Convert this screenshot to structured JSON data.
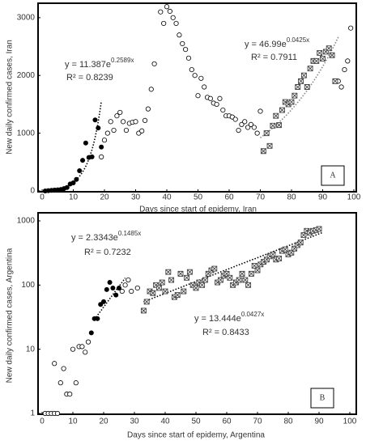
{
  "chart_data": [
    {
      "type": "scatter",
      "panel_label": "A",
      "xlabel": "Days since start of epidemy, Iran",
      "ylabel": "New daily confirmed cases, Iran",
      "xlim": [
        0,
        100
      ],
      "ylim": [
        0,
        3250
      ],
      "xticks": [
        0,
        10,
        20,
        30,
        40,
        50,
        60,
        70,
        80,
        90,
        100
      ],
      "yticks": [
        0,
        1000,
        2000,
        3000
      ],
      "log_y": false,
      "series": [
        {
          "marker": "filled-circle",
          "color": "#000000",
          "x": [
            1,
            2,
            3,
            4,
            5,
            6,
            7,
            8,
            9,
            10,
            11,
            12,
            13,
            14,
            15,
            16,
            17,
            18,
            19
          ],
          "values": [
            0,
            5,
            10,
            15,
            20,
            25,
            40,
            60,
            120,
            140,
            200,
            350,
            530,
            830,
            580,
            590,
            1230,
            1090,
            760
          ]
        },
        {
          "marker": "open-circle",
          "color": "#000000",
          "x": [
            19,
            20,
            21,
            22,
            23,
            24,
            25,
            26,
            27,
            28,
            29,
            30,
            31,
            32,
            33,
            34,
            35,
            36,
            38,
            39,
            40,
            41,
            42,
            43,
            44,
            45,
            46,
            47,
            48,
            49,
            50,
            51,
            52,
            53,
            54,
            55,
            56,
            57,
            58,
            59,
            60,
            61,
            62,
            63,
            64,
            65,
            66,
            67,
            68,
            69,
            70,
            95,
            96,
            97,
            98,
            99
          ],
          "values": [
            590,
            880,
            1000,
            1200,
            1050,
            1300,
            1360,
            1200,
            1050,
            1170,
            1190,
            1200,
            1000,
            1040,
            1220,
            1420,
            1760,
            2200,
            3100,
            2900,
            3190,
            3110,
            3000,
            2900,
            2700,
            2550,
            2450,
            2300,
            2100,
            2000,
            1650,
            1950,
            1800,
            1620,
            1600,
            1520,
            1500,
            1600,
            1400,
            1300,
            1300,
            1280,
            1240,
            1050,
            1150,
            1200,
            1100,
            1150,
            1100,
            1000,
            1380,
            1900,
            1800,
            2100,
            2250,
            2820
          ]
        },
        {
          "marker": "crossed-square",
          "color": "#444444",
          "x": [
            71,
            72,
            73,
            74,
            75,
            76,
            77,
            78,
            79,
            80,
            81,
            82,
            83,
            84,
            85,
            86,
            87,
            88,
            89,
            90,
            91,
            92,
            93,
            94
          ],
          "values": [
            690,
            1000,
            780,
            1130,
            1300,
            1140,
            1400,
            1540,
            1500,
            1540,
            1650,
            1800,
            1900,
            2000,
            1800,
            2120,
            2250,
            2250,
            2390,
            2290,
            2410,
            2470,
            2350,
            1900
          ]
        }
      ],
      "trendlines": [
        {
          "equation": "y = 11.387e",
          "exponent": "0.2589x",
          "r2": "R² = 0.8239",
          "x_range": [
            5,
            19
          ],
          "color": "#000000"
        },
        {
          "equation": "y = 46.99e",
          "exponent": "0.0425x",
          "r2": "R² = 0.7911",
          "x_range": [
            70,
            95
          ],
          "color": "#888888"
        }
      ]
    },
    {
      "type": "scatter",
      "panel_label": "B",
      "xlabel": "Days since start of epidemy, Argentina",
      "ylabel": "New daily confirmed cases, Argentina",
      "xlim": [
        0,
        100
      ],
      "ylim": [
        1,
        1000
      ],
      "xticks": [
        0,
        10,
        20,
        30,
        40,
        50,
        60,
        70,
        80,
        90,
        100
      ],
      "yticks": [
        1,
        10,
        100,
        1000
      ],
      "log_y": true,
      "series": [
        {
          "marker": "filled-circle",
          "color": "#000000",
          "x": [
            16,
            17,
            18,
            19,
            20,
            21,
            22,
            23,
            24,
            25
          ],
          "values": [
            18,
            30,
            30,
            50,
            55,
            85,
            110,
            90,
            70,
            90
          ]
        },
        {
          "marker": "open-circle",
          "color": "#000000",
          "x": [
            1,
            2,
            3,
            4,
            4,
            5,
            6,
            7,
            8,
            9,
            10,
            11,
            12,
            13,
            14,
            15,
            26,
            27,
            28,
            29,
            31
          ],
          "values": [
            1,
            1,
            1,
            1,
            6,
            1,
            3,
            5,
            2,
            2,
            10,
            3,
            11,
            11,
            9,
            13,
            80,
            100,
            120,
            80,
            90
          ]
        },
        {
          "marker": "crossed-square",
          "color": "#444444",
          "x": [
            33,
            34,
            35,
            36,
            37,
            38,
            39,
            40,
            41,
            42,
            43,
            44,
            45,
            46,
            47,
            48,
            49,
            50,
            51,
            52,
            53,
            54,
            55,
            56,
            57,
            58,
            59,
            60,
            61,
            62,
            63,
            64,
            65,
            66,
            67,
            68,
            69,
            70,
            71,
            72,
            73,
            74,
            75,
            76,
            77,
            78,
            79,
            80,
            81,
            82,
            83,
            84,
            85,
            86,
            87,
            88,
            89,
            90
          ],
          "values": [
            40,
            55,
            80,
            75,
            100,
            90,
            110,
            80,
            160,
            120,
            65,
            70,
            150,
            80,
            130,
            160,
            100,
            90,
            110,
            100,
            120,
            150,
            170,
            180,
            110,
            120,
            140,
            150,
            130,
            100,
            110,
            120,
            150,
            120,
            100,
            150,
            200,
            170,
            210,
            230,
            250,
            280,
            300,
            250,
            260,
            340,
            360,
            300,
            320,
            370,
            420,
            460,
            600,
            700,
            650,
            700,
            720,
            750
          ]
        }
      ],
      "trendlines": [
        {
          "equation": "y = 2.3343e",
          "exponent": "0.1485x",
          "r2": "R² = 0.7232",
          "x_range": [
            17,
            27
          ],
          "color": "#000000"
        },
        {
          "equation": "y = 13.444e",
          "exponent": "0.0427x",
          "r2": "R² = 0.8433",
          "x_range": [
            33,
            91
          ],
          "color": "#000000"
        }
      ]
    }
  ]
}
